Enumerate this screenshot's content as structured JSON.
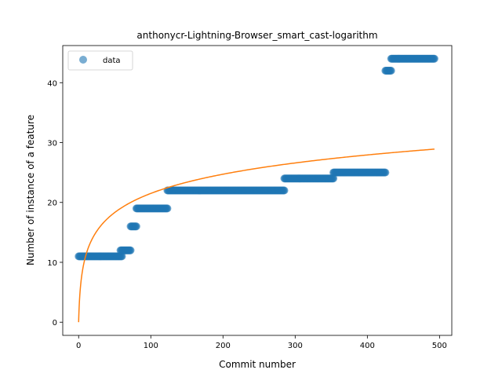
{
  "chart_data": {
    "type": "scatter",
    "title": "anthonycr-Lightning-Browser_smart_cast-logarithm",
    "xlabel": "Commit number",
    "ylabel": "Number of instance of a feature",
    "xlim": [
      -22,
      517
    ],
    "ylim": [
      -2.2,
      46.2
    ],
    "xticks": [
      0,
      100,
      200,
      300,
      400,
      500
    ],
    "yticks": [
      0,
      10,
      20,
      30,
      40
    ],
    "grid": false,
    "legend": {
      "placement": "top-left",
      "entries": [
        "data"
      ]
    },
    "colors": {
      "data": "#1f77b4",
      "fit": "#ff7f0e"
    },
    "series": [
      {
        "name": "data",
        "kind": "scatter",
        "segments": [
          {
            "x_start": 0,
            "x_end": 60,
            "y": 11
          },
          {
            "x_start": 58,
            "x_end": 72,
            "y": 12
          },
          {
            "x_start": 72,
            "x_end": 80,
            "y": 16
          },
          {
            "x_start": 80,
            "x_end": 123,
            "y": 19
          },
          {
            "x_start": 123,
            "x_end": 285,
            "y": 22
          },
          {
            "x_start": 285,
            "x_end": 353,
            "y": 24
          },
          {
            "x_start": 353,
            "x_end": 425,
            "y": 25
          },
          {
            "x_start": 425,
            "x_end": 433,
            "y": 42
          },
          {
            "x_start": 433,
            "x_end": 493,
            "y": 44
          }
        ]
      },
      {
        "kind": "line",
        "fit": {
          "a": 4.66,
          "b": 1,
          "x_start": 0,
          "x_end": 493
        }
      }
    ]
  }
}
